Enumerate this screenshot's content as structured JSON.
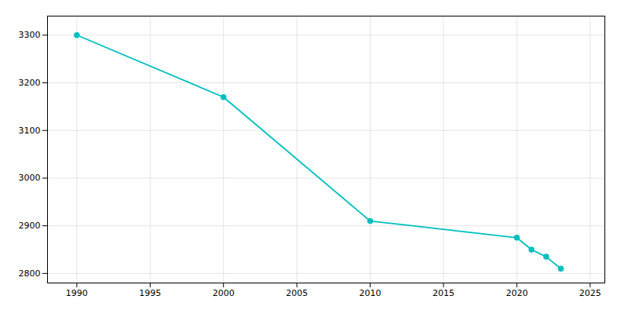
{
  "chart_data": {
    "type": "line",
    "x": [
      1990,
      2000,
      2010,
      2020,
      2021,
      2022,
      2023
    ],
    "values": [
      3300,
      3170,
      2910,
      2875,
      2850,
      2835,
      2810
    ],
    "color": "#00BFBF",
    "marker": "circle",
    "xlim": [
      1988,
      2026
    ],
    "ylim": [
      2780,
      3340
    ],
    "xticks": [
      1990,
      1995,
      2000,
      2005,
      2010,
      2015,
      2020,
      2025
    ],
    "yticks": [
      2800,
      2900,
      3000,
      3100,
      3200,
      3300
    ],
    "grid": true
  }
}
